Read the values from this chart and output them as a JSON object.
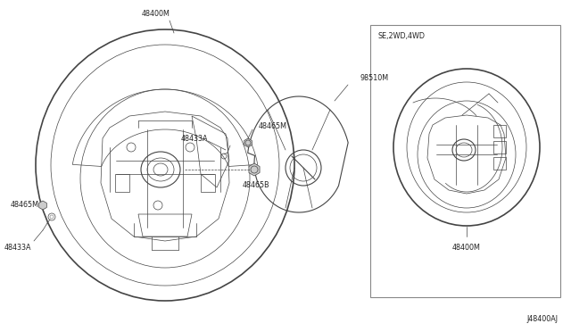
{
  "bg_color": "#f5f5f5",
  "line_color": "#444444",
  "light_line": "#777777",
  "thin": 0.5,
  "med": 0.8,
  "thick": 1.2,
  "fs": 5.8,
  "fc": "#222222",
  "diagram_label": "J48400AJ",
  "inset_label": "SE,2WD,4WD",
  "p_48400M": "48400M",
  "p_48433A": "48433A",
  "p_48465M": "48465M",
  "p_98510M": "98510M",
  "p_48465B": "48465B"
}
